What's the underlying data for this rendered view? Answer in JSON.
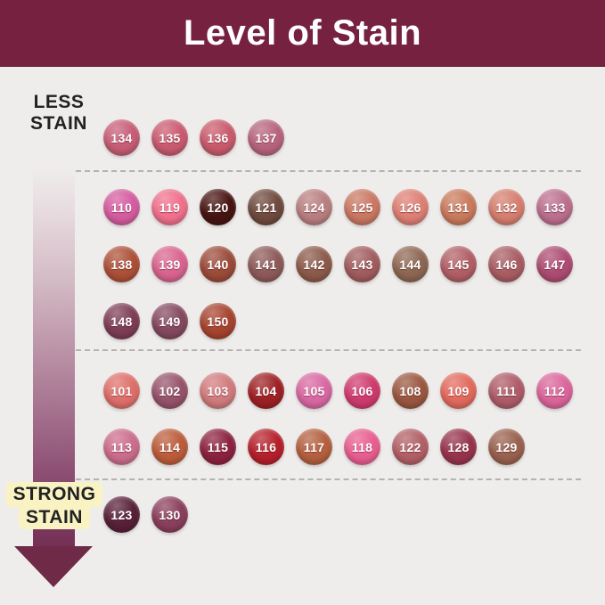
{
  "header": {
    "title": "Level of Stain",
    "bg": "#75213f",
    "text_color": "#ffffff"
  },
  "axis": {
    "less_lines": [
      "LESS",
      "STAIN"
    ],
    "strong_lines": [
      "STRONG",
      "STAIN"
    ],
    "highlight_color": "#f9f3c4",
    "arrow_dark": "#6f2a48"
  },
  "sections": [
    {
      "rows": [
        [
          {
            "num": "134",
            "color": "#c75d76"
          },
          {
            "num": "135",
            "color": "#ca5a70"
          },
          {
            "num": "136",
            "color": "#c95a6c"
          },
          {
            "num": "137",
            "color": "#b7647e"
          }
        ]
      ]
    },
    {
      "rows": [
        [
          {
            "num": "110",
            "color": "#d55ca0"
          },
          {
            "num": "119",
            "color": "#f0708d"
          },
          {
            "num": "120",
            "color": "#471512"
          },
          {
            "num": "121",
            "color": "#6f4a3d"
          },
          {
            "num": "124",
            "color": "#b97f80"
          },
          {
            "num": "125",
            "color": "#c97863"
          },
          {
            "num": "126",
            "color": "#de7f74"
          },
          {
            "num": "131",
            "color": "#ca7a5d"
          },
          {
            "num": "132",
            "color": "#d57f70"
          },
          {
            "num": "133",
            "color": "#bc6f8e"
          }
        ],
        [
          {
            "num": "138",
            "color": "#ad5038"
          },
          {
            "num": "139",
            "color": "#d9648f"
          },
          {
            "num": "140",
            "color": "#9b4b39"
          },
          {
            "num": "141",
            "color": "#8d5a59"
          },
          {
            "num": "142",
            "color": "#8c5a4a"
          },
          {
            "num": "143",
            "color": "#a15c5e"
          },
          {
            "num": "144",
            "color": "#8d6752"
          },
          {
            "num": "145",
            "color": "#b15f66"
          },
          {
            "num": "146",
            "color": "#a95d63"
          },
          {
            "num": "147",
            "color": "#ad4c72"
          }
        ],
        [
          {
            "num": "148",
            "color": "#7d3d55"
          },
          {
            "num": "149",
            "color": "#84495f"
          },
          {
            "num": "150",
            "color": "#a64430"
          }
        ]
      ]
    },
    {
      "rows": [
        [
          {
            "num": "101",
            "color": "#de6f6a"
          },
          {
            "num": "102",
            "color": "#96536b"
          },
          {
            "num": "103",
            "color": "#d17b7d"
          },
          {
            "num": "104",
            "color": "#9d2125"
          },
          {
            "num": "105",
            "color": "#d868a2"
          },
          {
            "num": "106",
            "color": "#cf3a6e"
          },
          {
            "num": "108",
            "color": "#9a5740"
          },
          {
            "num": "109",
            "color": "#e26a5e"
          },
          {
            "num": "111",
            "color": "#ae5c69"
          },
          {
            "num": "112",
            "color": "#db659b"
          }
        ],
        [
          {
            "num": "113",
            "color": "#cb6d8d"
          },
          {
            "num": "114",
            "color": "#bc5c3b"
          },
          {
            "num": "115",
            "color": "#8c2240"
          },
          {
            "num": "116",
            "color": "#b5202b"
          },
          {
            "num": "117",
            "color": "#b4603f"
          },
          {
            "num": "118",
            "color": "#e85e90"
          },
          {
            "num": "122",
            "color": "#b26066"
          },
          {
            "num": "128",
            "color": "#97344c"
          },
          {
            "num": "129",
            "color": "#99614f"
          }
        ]
      ]
    },
    {
      "rows": [
        [
          {
            "num": "123",
            "color": "#572138"
          },
          {
            "num": "130",
            "color": "#8a3f5c"
          }
        ]
      ]
    }
  ]
}
